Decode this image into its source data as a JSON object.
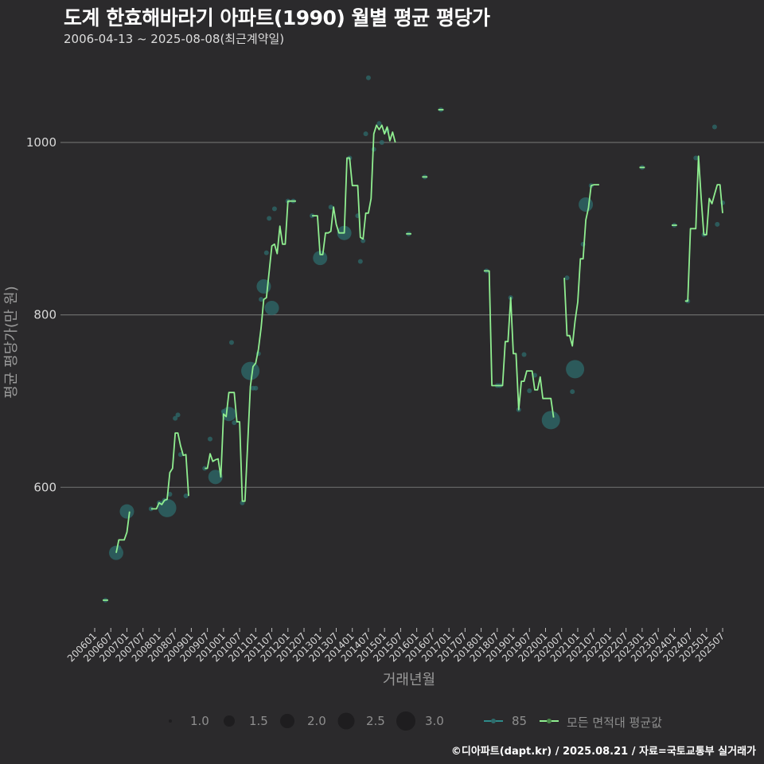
{
  "header": {
    "title": "도계 한효해바라기 아파트(1990) 월별 평균 평당가",
    "subtitle": "2006-04-13 ~ 2025-08-08(최근계약일)"
  },
  "caption": "©디아파트(dapt.kr) / 2025.08.21 / 자료=국토교통부 실거래가",
  "colors": {
    "background": "#2b2a2c",
    "line": "#90ee90",
    "bubble": "#2e6b6b",
    "grid": "#6a6a6a"
  },
  "legend": {
    "size_title": "",
    "sizes": [
      {
        "label": "1.0",
        "r": 2
      },
      {
        "label": "1.5",
        "r": 6
      },
      {
        "label": "2.0",
        "r": 8.5
      },
      {
        "label": "2.5",
        "r": 10
      },
      {
        "label": "3.0",
        "r": 12
      }
    ],
    "series": [
      {
        "label": "85",
        "color": "#2e8b8b"
      },
      {
        "label": "모든 면적대 평균값",
        "color": "#90ee90"
      }
    ]
  },
  "chart_data": {
    "type": "line",
    "title": "도계 한효해바라기 아파트(1990) 월별 평균 평당가",
    "subtitle": "2006-04-13 ~ 2025-08-08(최근계약일)",
    "xlabel": "거래년월",
    "ylabel": "평균 평당가(만 원)",
    "ylim": [
      440,
      1080
    ],
    "yticks": [
      600,
      800,
      1000
    ],
    "grid": true,
    "legend_position": "bottom",
    "xticks": [
      "200601",
      "200607",
      "200701",
      "200707",
      "200801",
      "200807",
      "200901",
      "200907",
      "201001",
      "201007",
      "201101",
      "201107",
      "201201",
      "201207",
      "201301",
      "201307",
      "201401",
      "201407",
      "201501",
      "201507",
      "201601",
      "201607",
      "201701",
      "201707",
      "201801",
      "201807",
      "201901",
      "201907",
      "202001",
      "202007",
      "202101",
      "202107",
      "202201",
      "202207",
      "202301",
      "202307",
      "202401",
      "202407",
      "202501",
      "202507"
    ],
    "series": [
      {
        "name": "모든 면적대 평균값",
        "segments": [
          [
            [
              "200604",
              469
            ],
            [
              "200606",
              469
            ]
          ],
          [
            [
              "200609",
              524
            ],
            [
              "200610",
              539
            ],
            [
              "200612",
              539
            ],
            [
              "200701",
              548
            ],
            [
              "200702",
              572
            ]
          ],
          [
            [
              "200710",
              575
            ],
            [
              "200712",
              575
            ],
            [
              "200801",
              582
            ],
            [
              "200802",
              580
            ],
            [
              "200803",
              585
            ],
            [
              "200804",
              586
            ],
            [
              "200805",
              617
            ],
            [
              "200806",
              622
            ],
            [
              "200807",
              663
            ],
            [
              "200808",
              663
            ],
            [
              "200809",
              648
            ],
            [
              "200810",
              637
            ],
            [
              "200811",
              638
            ],
            [
              "200812",
              590
            ]
          ],
          [
            [
              "200906",
              622
            ],
            [
              "200907",
              622
            ],
            [
              "200908",
              639
            ],
            [
              "200909",
              630
            ],
            [
              "200910",
              632
            ],
            [
              "200911",
              633
            ],
            [
              "200912",
              612
            ],
            [
              "201001",
              685
            ],
            [
              "201002",
              682
            ],
            [
              "201003",
              710
            ],
            [
              "201004",
              710
            ],
            [
              "201005",
              710
            ],
            [
              "201006",
              676
            ],
            [
              "201007",
              676
            ],
            [
              "201008",
              584
            ],
            [
              "201009",
              584
            ],
            [
              "201010",
              650
            ],
            [
              "201011",
              717
            ],
            [
              "201012",
              740
            ],
            [
              "201101",
              744
            ],
            [
              "201102",
              760
            ],
            [
              "201103",
              785
            ],
            [
              "201104",
              818
            ],
            [
              "201105",
              820
            ],
            [
              "201106",
              850
            ],
            [
              "201107",
              880
            ],
            [
              "201108",
              882
            ],
            [
              "201109",
              871
            ],
            [
              "201110",
              903
            ],
            [
              "201111",
              882
            ],
            [
              "201112",
              882
            ],
            [
              "201201",
              932
            ],
            [
              "201202",
              932
            ],
            [
              "201203",
              932
            ],
            [
              "201204",
              932
            ]
          ],
          [
            [
              "201210",
              915
            ],
            [
              "201211",
              915
            ],
            [
              "201212",
              915
            ],
            [
              "201301",
              870
            ],
            [
              "201302",
              870
            ],
            [
              "201303",
              895
            ],
            [
              "201304",
              895
            ],
            [
              "201305",
              897
            ],
            [
              "201306",
              925
            ],
            [
              "201307",
              905
            ],
            [
              "201308",
              895
            ],
            [
              "201309",
              895
            ],
            [
              "201310",
              895
            ],
            [
              "201311",
              982
            ],
            [
              "201312",
              982
            ],
            [
              "201401",
              950
            ],
            [
              "201402",
              950
            ],
            [
              "201403",
              950
            ],
            [
              "201404",
              890
            ],
            [
              "201405",
              888
            ],
            [
              "201406",
              918
            ],
            [
              "201407",
              918
            ],
            [
              "201408",
              935
            ],
            [
              "201409",
              1010
            ],
            [
              "201410",
              1020
            ],
            [
              "201411",
              1015
            ],
            [
              "201412",
              1020
            ],
            [
              "201501",
              1010
            ],
            [
              "201502",
              1018
            ],
            [
              "201503",
              1002
            ],
            [
              "201504",
              1012
            ],
            [
              "201505",
              1000
            ]
          ],
          [
            [
              "201509",
              894
            ],
            [
              "201511",
              894
            ]
          ],
          [
            [
              "201603",
              960
            ],
            [
              "201605",
              960
            ]
          ],
          [
            [
              "201609",
              1038
            ],
            [
              "201611",
              1038
            ]
          ],
          [
            [
              "201802",
              851
            ],
            [
              "201804",
              851
            ],
            [
              "201805",
              718
            ],
            [
              "201806",
              718
            ],
            [
              "201807",
              718
            ],
            [
              "201808",
              718
            ],
            [
              "201809",
              718
            ],
            [
              "201810",
              769
            ],
            [
              "201811",
              769
            ],
            [
              "201812",
              820
            ],
            [
              "201901",
              755
            ],
            [
              "201902",
              755
            ],
            [
              "201903",
              690
            ],
            [
              "201904",
              723
            ],
            [
              "201905",
              723
            ],
            [
              "201906",
              735
            ],
            [
              "201907",
              735
            ],
            [
              "201908",
              735
            ],
            [
              "201909",
              713
            ],
            [
              "201910",
              713
            ],
            [
              "201911",
              728
            ],
            [
              "201912",
              703
            ],
            [
              "202001",
              703
            ],
            [
              "202002",
              703
            ],
            [
              "202003",
              703
            ],
            [
              "202004",
              681
            ]
          ],
          [
            [
              "202008",
              843
            ],
            [
              "202009",
              776
            ],
            [
              "202010",
              776
            ],
            [
              "202011",
              764
            ],
            [
              "202012",
              793
            ],
            [
              "202101",
              815
            ],
            [
              "202102",
              865
            ],
            [
              "202103",
              865
            ],
            [
              "202104",
              910
            ],
            [
              "202105",
              924
            ],
            [
              "202106",
              950
            ],
            [
              "202107",
              951
            ],
            [
              "202108",
              951
            ],
            [
              "202109",
              951
            ]
          ],
          [
            [
              "202212",
              971
            ],
            [
              "202302",
              971
            ]
          ],
          [
            [
              "202312",
              904
            ],
            [
              "202402",
              904
            ]
          ],
          [
            [
              "202405",
              816
            ],
            [
              "202406",
              816
            ],
            [
              "202407",
              900
            ],
            [
              "202408",
              900
            ],
            [
              "202409",
              900
            ],
            [
              "202410",
              984
            ],
            [
              "202411",
              935
            ],
            [
              "202412",
              893
            ],
            [
              "202501",
              893
            ],
            [
              "202502",
              935
            ],
            [
              "202503",
              929
            ],
            [
              "202504",
              940
            ],
            [
              "202505",
              951
            ],
            [
              "202506",
              951
            ],
            [
              "202507",
              918
            ]
          ]
        ]
      }
    ],
    "bubbles": {
      "name": "85",
      "points": [
        [
          "200605",
          469,
          1
        ],
        [
          "200609",
          524,
          2
        ],
        [
          "200610",
          530,
          1
        ],
        [
          "200701",
          572,
          2
        ],
        [
          "200710",
          575,
          1
        ],
        [
          "200801",
          582,
          1
        ],
        [
          "200803",
          585,
          1
        ],
        [
          "200804",
          576,
          2.5
        ],
        [
          "200805",
          592,
          1
        ],
        [
          "200807",
          680,
          1
        ],
        [
          "200808",
          684,
          1
        ],
        [
          "200809",
          638,
          1
        ],
        [
          "200811",
          590,
          1
        ],
        [
          "200906",
          622,
          1
        ],
        [
          "200908",
          656,
          1
        ],
        [
          "200910",
          612,
          2
        ],
        [
          "201001",
          688,
          1
        ],
        [
          "201003",
          685,
          2
        ],
        [
          "201004",
          768,
          1
        ],
        [
          "201005",
          675,
          1
        ],
        [
          "201008",
          582,
          1
        ],
        [
          "201011",
          735,
          2.5
        ],
        [
          "201012",
          715,
          1
        ],
        [
          "201101",
          715,
          1
        ],
        [
          "201102",
          755,
          1
        ],
        [
          "201103",
          818,
          1
        ],
        [
          "201104",
          833,
          2
        ],
        [
          "201105",
          872,
          1
        ],
        [
          "201106",
          912,
          1
        ],
        [
          "201107",
          808,
          2
        ],
        [
          "201108",
          923,
          1
        ],
        [
          "201201",
          932,
          1
        ],
        [
          "201203",
          932,
          1
        ],
        [
          "201210",
          915,
          1
        ],
        [
          "201301",
          866,
          2
        ],
        [
          "201305",
          925,
          1
        ],
        [
          "201310",
          895,
          2
        ],
        [
          "201312",
          982,
          1
        ],
        [
          "201403",
          915,
          1
        ],
        [
          "201404",
          862,
          1
        ],
        [
          "201405",
          886,
          1
        ],
        [
          "201406",
          1010,
          1
        ],
        [
          "201407",
          1075,
          1
        ],
        [
          "201409",
          992,
          1
        ],
        [
          "201411",
          1022,
          1
        ],
        [
          "201412",
          1000,
          1
        ],
        [
          "201502",
          1014,
          1
        ],
        [
          "201510",
          894,
          1
        ],
        [
          "201604",
          960,
          1
        ],
        [
          "201610",
          1038,
          1
        ],
        [
          "201803",
          851,
          1
        ],
        [
          "201807",
          718,
          1
        ],
        [
          "201808",
          718,
          1
        ],
        [
          "201812",
          820,
          1
        ],
        [
          "201903",
          690,
          1
        ],
        [
          "201905",
          754,
          1
        ],
        [
          "201907",
          712,
          1
        ],
        [
          "201909",
          730,
          1
        ],
        [
          "202003",
          678,
          2.5
        ],
        [
          "202009",
          843,
          1
        ],
        [
          "202011",
          711,
          1
        ],
        [
          "202012",
          737,
          2.5
        ],
        [
          "202103",
          882,
          1
        ],
        [
          "202104",
          928,
          2
        ],
        [
          "202106",
          950,
          1
        ],
        [
          "202301",
          971,
          1
        ],
        [
          "202401",
          904,
          1
        ],
        [
          "202406",
          816,
          1
        ],
        [
          "202409",
          982,
          1
        ],
        [
          "202412",
          893,
          1
        ],
        [
          "202504",
          1018,
          1
        ],
        [
          "202505",
          905,
          1
        ],
        [
          "202507",
          930,
          1
        ]
      ]
    }
  }
}
